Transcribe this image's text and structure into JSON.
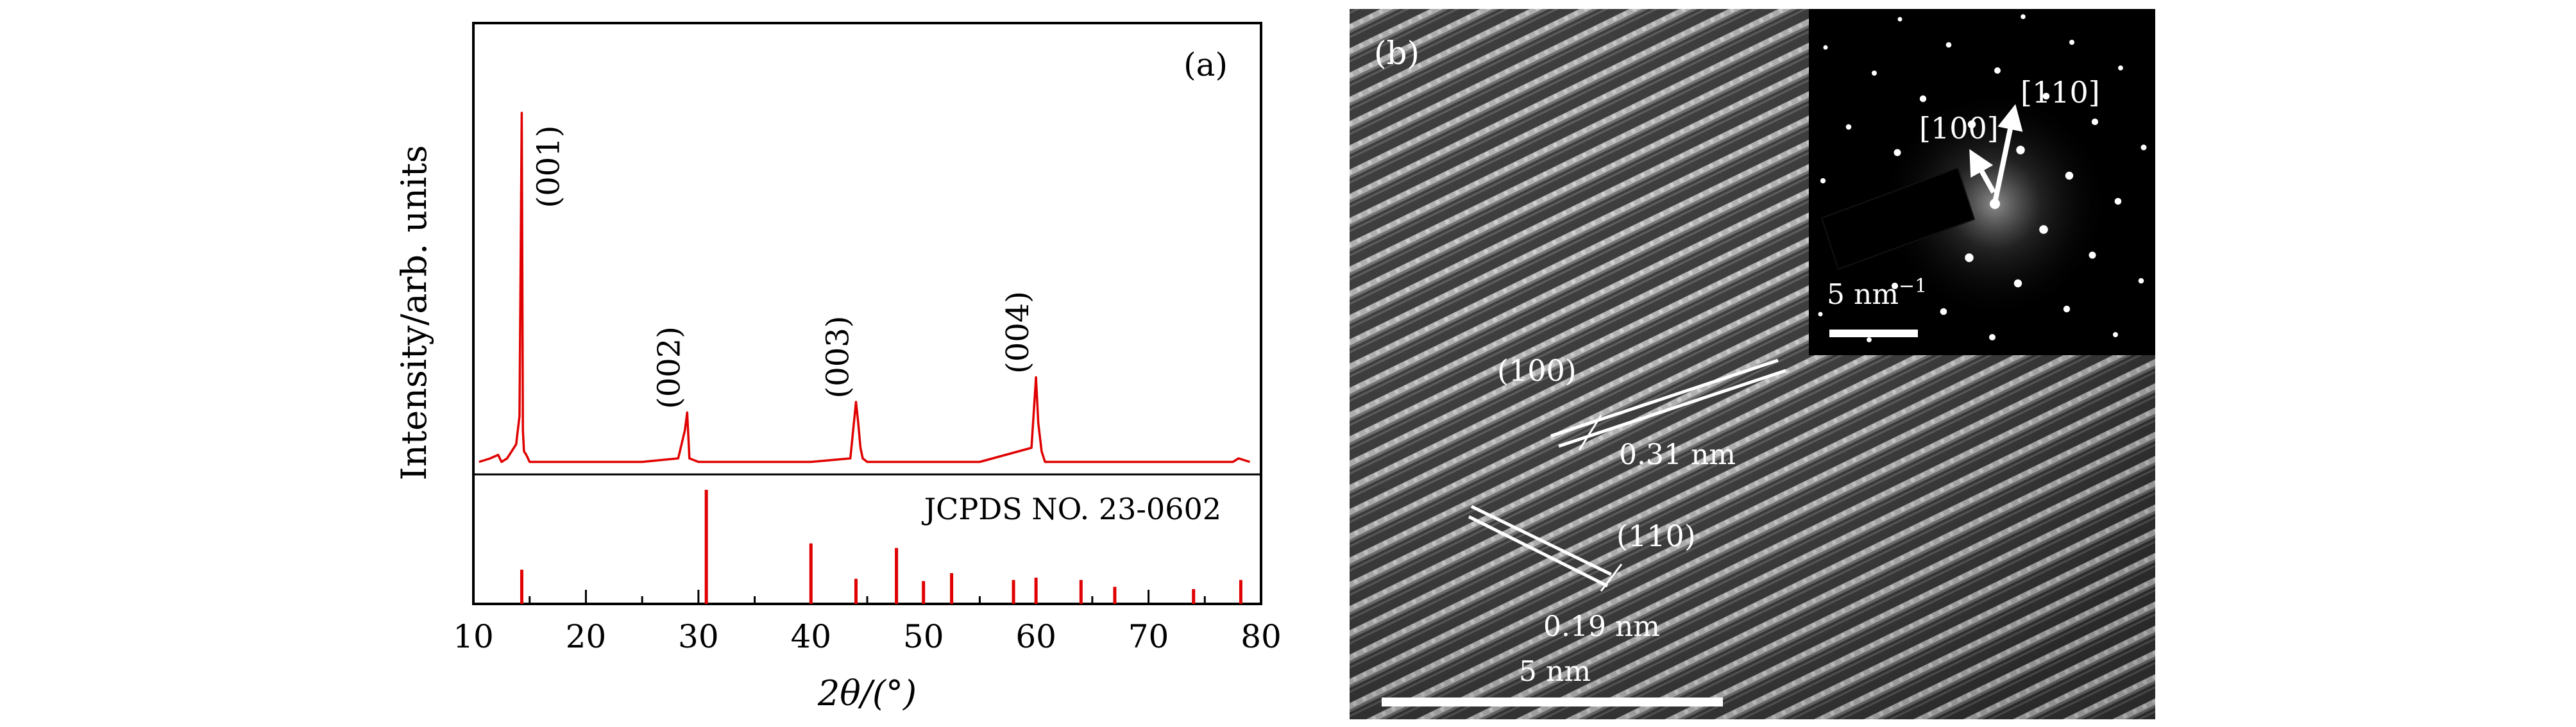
{
  "chart_data": [
    {
      "panel_label": "(a)",
      "type": "line",
      "xlabel": "2θ/(°)",
      "ylabel": "Intensity/arb. units",
      "xlim": [
        10,
        80
      ],
      "x_ticks": [
        10,
        20,
        30,
        40,
        50,
        60,
        70,
        80
      ],
      "series": [
        {
          "color": "#e00000",
          "x": [
            10.5,
            11.5,
            12.2,
            12.5,
            13.0,
            13.8,
            14.1,
            14.3,
            14.4,
            14.5,
            14.7,
            15.0,
            15.5,
            20.0,
            25.0,
            28.2,
            28.8,
            29.0,
            29.2,
            30.0,
            35.0,
            40.0,
            43.5,
            44.0,
            44.2,
            44.4,
            44.6,
            45.0,
            50.0,
            55.0,
            59.6,
            60.0,
            60.2,
            60.5,
            60.8,
            65.0,
            70.0,
            77.5,
            78.0,
            79.0
          ],
          "y": [
            1,
            2,
            3,
            1,
            2,
            6,
            14,
            100,
            10,
            4,
            3,
            1,
            1,
            1,
            1,
            2,
            10,
            15,
            2,
            1,
            1,
            1,
            2,
            18,
            12,
            5,
            2,
            1,
            1,
            1,
            5,
            25,
            12,
            4,
            1,
            1,
            1,
            1,
            2,
            1
          ]
        }
      ],
      "peak_annotations": [
        {
          "label": "(001)",
          "x": 14.3
        },
        {
          "label": "(002)",
          "x": 29.0
        },
        {
          "label": "(003)",
          "x": 44.0
        },
        {
          "label": "(004)",
          "x": 60.0
        }
      ],
      "reference": {
        "label": "JCPDS NO. 23-0602",
        "sticks": [
          {
            "x": 14.3,
            "h": 30
          },
          {
            "x": 30.7,
            "h": 100
          },
          {
            "x": 40.0,
            "h": 53
          },
          {
            "x": 44.0,
            "h": 22
          },
          {
            "x": 47.6,
            "h": 49
          },
          {
            "x": 50.0,
            "h": 20
          },
          {
            "x": 52.5,
            "h": 27
          },
          {
            "x": 58.0,
            "h": 21
          },
          {
            "x": 60.0,
            "h": 23
          },
          {
            "x": 64.0,
            "h": 21
          },
          {
            "x": 67.0,
            "h": 15
          },
          {
            "x": 74.0,
            "h": 13
          },
          {
            "x": 78.2,
            "h": 21
          }
        ]
      }
    },
    {
      "panel_label": "(b)",
      "type": "image",
      "lattice_labels": [
        {
          "plane": "(100)",
          "spacing": "0.31 nm"
        },
        {
          "plane": "(110)",
          "spacing": "0.19 nm"
        }
      ],
      "scale_bar": "5 nm",
      "inset": {
        "directions": [
          "[100]",
          "[110]"
        ],
        "scale_bar_base": "5 nm",
        "scale_bar_sup": "−1"
      }
    }
  ]
}
